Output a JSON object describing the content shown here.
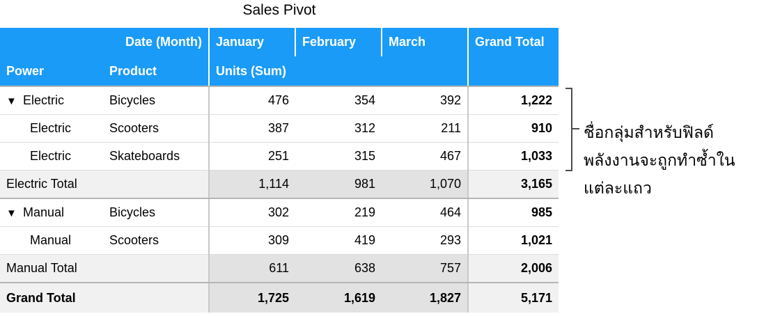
{
  "title": "Sales Pivot",
  "header": {
    "column_field": "Date (Month)",
    "columns": [
      "January",
      "February",
      "March",
      "Grand Total"
    ],
    "row_fields": [
      "Power",
      "Product"
    ],
    "value_field": "Units (Sum)"
  },
  "groups": [
    {
      "name": "Electric",
      "rows": [
        {
          "power": "Electric",
          "product": "Bicycles",
          "values": [
            "476",
            "354",
            "392"
          ],
          "total": "1,222"
        },
        {
          "power": "Electric",
          "product": "Scooters",
          "values": [
            "387",
            "312",
            "211"
          ],
          "total": "910"
        },
        {
          "power": "Electric",
          "product": "Skateboards",
          "values": [
            "251",
            "315",
            "467"
          ],
          "total": "1,033"
        }
      ],
      "subtotal": {
        "label": "Electric Total",
        "values": [
          "1,114",
          "981",
          "1,070"
        ],
        "total": "3,165"
      }
    },
    {
      "name": "Manual",
      "rows": [
        {
          "power": "Manual",
          "product": "Bicycles",
          "values": [
            "302",
            "219",
            "464"
          ],
          "total": "985"
        },
        {
          "power": "Manual",
          "product": "Scooters",
          "values": [
            "309",
            "419",
            "293"
          ],
          "total": "1,021"
        }
      ],
      "subtotal": {
        "label": "Manual Total",
        "values": [
          "611",
          "638",
          "757"
        ],
        "total": "2,006"
      }
    }
  ],
  "grand_total": {
    "label": "Grand Total",
    "values": [
      "1,725",
      "1,619",
      "1,827"
    ],
    "total": "5,171"
  },
  "callout": "ชื่อกลุ่มสำหรับฟิลด์พลังงานจะถูกทำซ้ำในแต่ละแถว",
  "icons": {
    "expand": "disclosure-triangle-down"
  },
  "colors": {
    "header_bg": "#1a9bf8",
    "header_text": "#ffffff",
    "subtotal_bg": "#f1f1f1"
  }
}
